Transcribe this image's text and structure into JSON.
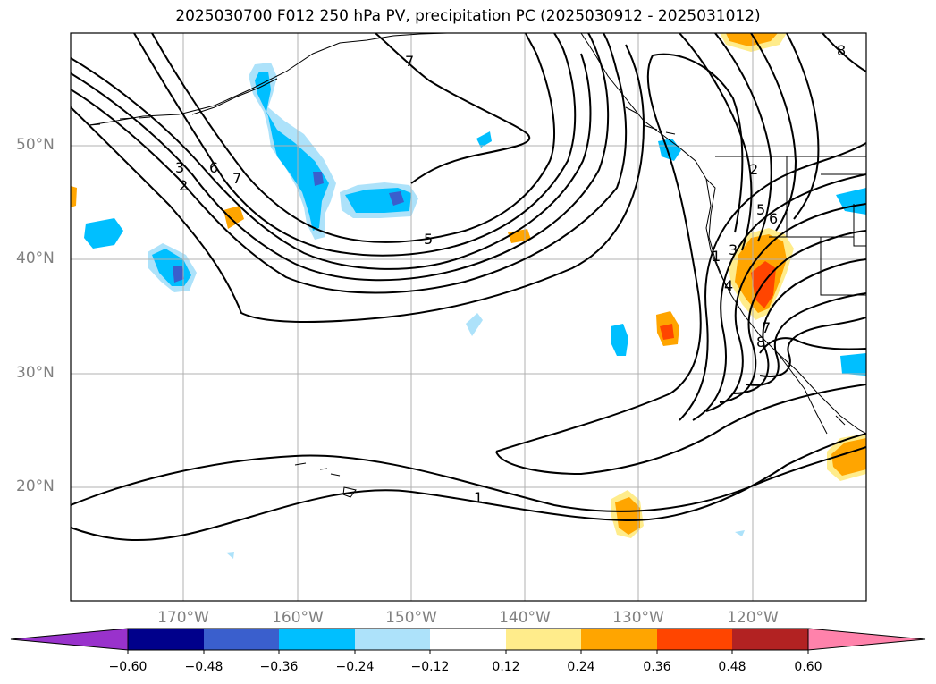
{
  "title": "2025030700 F012 250 hPa PV, precipitation PC (2025030912 - 2025031012)",
  "latitude_labels": [
    "50°N",
    "40°N",
    "30°N",
    "20°N"
  ],
  "longitude_labels": [
    "170°W",
    "160°W",
    "150°W",
    "140°W",
    "130°W",
    "120°W"
  ],
  "colorbar": {
    "tick_labels": [
      "−0.60",
      "−0.48",
      "−0.36",
      "−0.24",
      "−0.12",
      "0.12",
      "0.24",
      "0.36",
      "0.48",
      "0.60"
    ],
    "colors": [
      "#9932CC",
      "#00008B",
      "#3A5FCD",
      "#00BFFF",
      "#ADE2FA",
      "#FFFFFF",
      "#FFEC8B",
      "#FFA500",
      "#FF4500",
      "#B22222",
      "#FF82AB"
    ]
  },
  "contour_labels": [
    "7",
    "3",
    "2",
    "6",
    "7",
    "5",
    "1",
    "2",
    "5",
    "6",
    "1",
    "3",
    "4",
    "7",
    "8",
    "8"
  ],
  "colors": {
    "land_outline": "#000000",
    "contour": "#000000",
    "grid": "#b0b0b0",
    "axis_label": "#808080"
  }
}
